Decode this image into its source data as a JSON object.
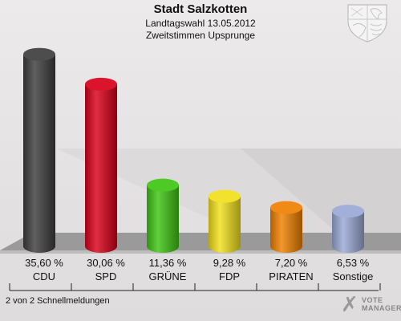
{
  "header": {
    "title": "Stadt Salzkotten",
    "subtitle": "Landtagswahl 13.05.2012",
    "subtitle2": "Zweitstimmen Upsprunge"
  },
  "footer": {
    "note": "2 von 2 Schnellmeldungen",
    "logo_line1": "VOTE",
    "logo_line2": "MANAGER"
  },
  "chart_data": {
    "type": "bar",
    "categories": [
      "CDU",
      "SPD",
      "GRÜNE",
      "FDP",
      "PIRATEN",
      "Sonstige"
    ],
    "values": [
      35.6,
      30.06,
      11.36,
      9.28,
      7.2,
      6.53
    ],
    "value_labels": [
      "35,60 %",
      "30,06 %",
      "11,36 %",
      "9,28 %",
      "7,20 %",
      "6,53 %"
    ],
    "colors": [
      "#3d3d3d",
      "#d90019",
      "#3ec513",
      "#f2e01b",
      "#f08000",
      "#9aa8d6"
    ],
    "title": "Stadt Salzkotten",
    "xlabel": "",
    "ylabel": "",
    "ylim": [
      0,
      36
    ],
    "grid": false,
    "legend": "none"
  }
}
